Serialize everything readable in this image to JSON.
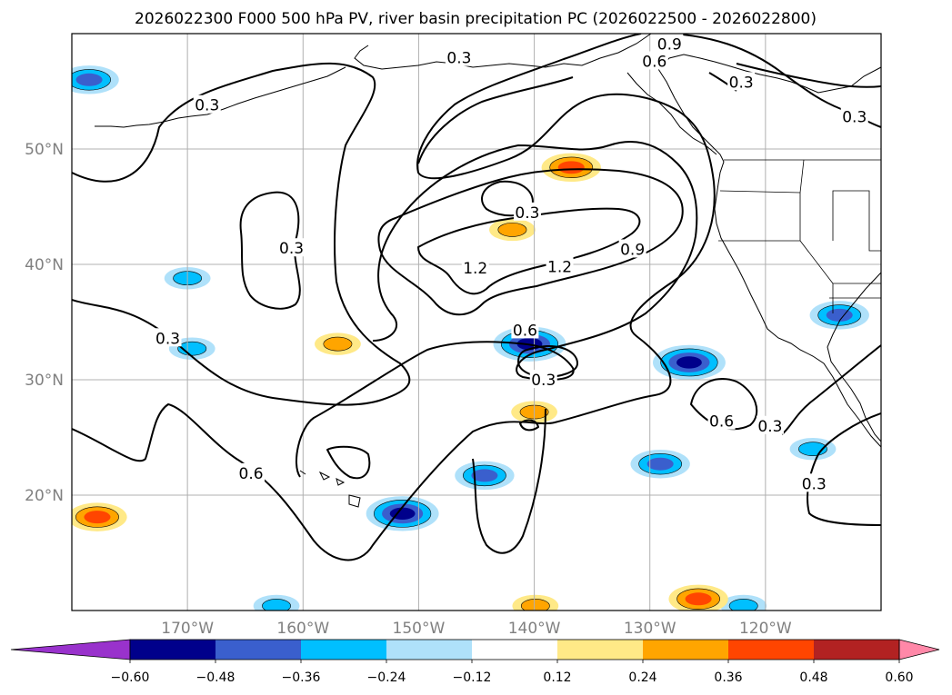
{
  "chart_data": {
    "type": "contour_map",
    "title": "2026022300 F000 500 hPa PV, river basin precipitation PC (2026022500 - 2026022800)",
    "map": {
      "lon_range": [
        -180,
        -110
      ],
      "lat_range": [
        10,
        60
      ],
      "lon_ticks": [
        -170,
        -160,
        -150,
        -140,
        -130,
        -120
      ],
      "lon_tick_labels": [
        "170°W",
        "160°W",
        "150°W",
        "140°W",
        "130°W",
        "120°W"
      ],
      "lat_ticks": [
        20,
        30,
        40,
        50
      ],
      "lat_tick_labels": [
        "20°N",
        "30°N",
        "40°N",
        "50°N"
      ],
      "grid": true
    },
    "pv_contours": {
      "levels": [
        0.3,
        0.6,
        0.9,
        1.2
      ],
      "labels": [
        {
          "text": "0.9",
          "lon": -128.3,
          "lat": 59.1
        },
        {
          "text": "0.3",
          "lon": -146.5,
          "lat": 57.9
        },
        {
          "text": "0.6",
          "lon": -129.6,
          "lat": 57.6
        },
        {
          "text": "0.3",
          "lon": -122.1,
          "lat": 55.8
        },
        {
          "text": "0.3",
          "lon": -168.3,
          "lat": 53.8
        },
        {
          "text": "0.3",
          "lon": -112.3,
          "lat": 52.8
        },
        {
          "text": "0.3",
          "lon": -161.0,
          "lat": 41.4
        },
        {
          "text": "0.3",
          "lon": -140.6,
          "lat": 44.5
        },
        {
          "text": "1.2",
          "lon": -145.1,
          "lat": 39.7
        },
        {
          "text": "1.2",
          "lon": -137.8,
          "lat": 39.8
        },
        {
          "text": "0.9",
          "lon": -131.5,
          "lat": 41.3
        },
        {
          "text": "0.6",
          "lon": -140.8,
          "lat": 34.3
        },
        {
          "text": "0.3",
          "lon": -171.7,
          "lat": 33.6
        },
        {
          "text": "0.3",
          "lon": -139.2,
          "lat": 30.0
        },
        {
          "text": "0.6",
          "lon": -123.8,
          "lat": 26.4
        },
        {
          "text": "0.3",
          "lon": -119.6,
          "lat": 26.0
        },
        {
          "text": "0.6",
          "lon": -164.5,
          "lat": 21.9
        },
        {
          "text": "0.3",
          "lon": -115.8,
          "lat": 21.0
        }
      ]
    },
    "precip_pc_fill": {
      "colorbar": {
        "levels": [
          -0.6,
          -0.48,
          -0.36,
          -0.24,
          -0.12,
          0.12,
          0.24,
          0.36,
          0.48,
          0.6
        ],
        "tick_labels": [
          "−0.60",
          "−0.48",
          "−0.36",
          "−0.24",
          "−0.12",
          "0.12",
          "0.24",
          "0.36",
          "0.48",
          "0.60"
        ],
        "colors": [
          "#9932cc",
          "#00008b",
          "#3a5fcd",
          "#00bfff",
          "#afe1fa",
          "#ffffff",
          "#ffe987",
          "#ffa500",
          "#ff4500",
          "#b22222",
          "#ff88a8"
        ],
        "extend": "both"
      },
      "regions": [
        {
          "sign": "positive",
          "peak": 0.36,
          "lon": -136.8,
          "lat": 48.4
        },
        {
          "sign": "negative",
          "peak": -0.36,
          "lon": -178.5,
          "lat": 56.0
        },
        {
          "sign": "negative",
          "peak": -0.48,
          "lon": -140.4,
          "lat": 33.1
        },
        {
          "sign": "negative",
          "peak": -0.48,
          "lon": -126.6,
          "lat": 31.5
        },
        {
          "sign": "negative",
          "peak": -0.48,
          "lon": -151.4,
          "lat": 18.4
        },
        {
          "sign": "negative",
          "peak": -0.36,
          "lon": -113.6,
          "lat": 35.6
        },
        {
          "sign": "negative",
          "peak": -0.36,
          "lon": -144.3,
          "lat": 21.7
        },
        {
          "sign": "negative",
          "peak": -0.24,
          "lon": -169.6,
          "lat": 32.7
        },
        {
          "sign": "negative",
          "peak": -0.24,
          "lon": -170.0,
          "lat": 38.8
        },
        {
          "sign": "negative",
          "peak": -0.36,
          "lon": -129.1,
          "lat": 22.7
        },
        {
          "sign": "negative",
          "peak": -0.24,
          "lon": -115.9,
          "lat": 24.0
        },
        {
          "sign": "negative",
          "peak": -0.24,
          "lon": -162.3,
          "lat": 10.4
        },
        {
          "sign": "negative",
          "peak": -0.24,
          "lon": -121.9,
          "lat": 10.4
        },
        {
          "sign": "positive",
          "peak": 0.36,
          "lon": -125.8,
          "lat": 11.0
        },
        {
          "sign": "positive",
          "peak": 0.36,
          "lon": -177.8,
          "lat": 18.1
        },
        {
          "sign": "positive",
          "peak": 0.24,
          "lon": -139.9,
          "lat": 10.4
        },
        {
          "sign": "positive",
          "peak": 0.24,
          "lon": -141.9,
          "lat": 43.0
        },
        {
          "sign": "positive",
          "peak": 0.24,
          "lon": -157.0,
          "lat": 33.1
        },
        {
          "sign": "positive",
          "peak": 0.24,
          "lon": -140.0,
          "lat": 27.2
        }
      ]
    }
  }
}
